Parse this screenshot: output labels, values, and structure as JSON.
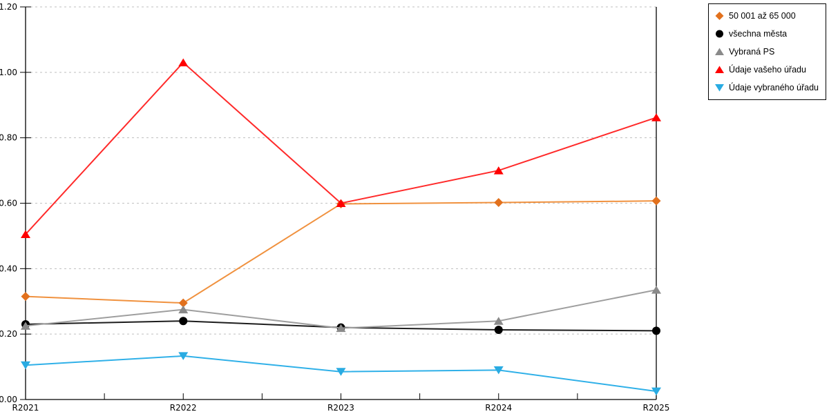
{
  "chart_data": {
    "type": "line",
    "title": "",
    "x_categories": [
      "R2021",
      "R2022",
      "R2023",
      "R2024",
      "R2025"
    ],
    "y_ticks": [
      "0.00",
      "0.20",
      "0.40",
      "0.60",
      "0.80",
      "1.00",
      "1.20"
    ],
    "ylim": [
      0,
      1.2
    ],
    "grid": "horizontal-dashed",
    "grid_color": "#BFBFBF",
    "axis_color": "#000000",
    "legend_position": "outside-top-right",
    "series": [
      {
        "name": "50 001 až 65 000",
        "marker": "diamond",
        "marker_color": "#E2711D",
        "line_color": "#F0913E",
        "values": [
          0.315,
          0.295,
          0.598,
          0.602,
          0.607
        ]
      },
      {
        "name": "všechna města",
        "marker": "circle",
        "marker_color": "#000000",
        "line_color": "#1C1C1C",
        "values": [
          0.23,
          0.24,
          0.22,
          0.213,
          0.21
        ]
      },
      {
        "name": "Vybraná PS",
        "marker": "triangle-up",
        "marker_color": "#8A8A8A",
        "line_color": "#9E9E9E",
        "values": [
          0.225,
          0.275,
          0.218,
          0.24,
          0.335
        ]
      },
      {
        "name": "Údaje vašeho úřadu",
        "marker": "triangle-up",
        "marker_color": "#FF0000",
        "line_color": "#FF2A2A",
        "values": [
          0.505,
          1.03,
          0.6,
          0.7,
          0.862
        ]
      },
      {
        "name": "Údaje vybraného úřadu",
        "marker": "triangle-down",
        "marker_color": "#29ABE2",
        "line_color": "#2FB0E8",
        "values": [
          0.105,
          0.133,
          0.085,
          0.09,
          0.025
        ]
      }
    ]
  }
}
